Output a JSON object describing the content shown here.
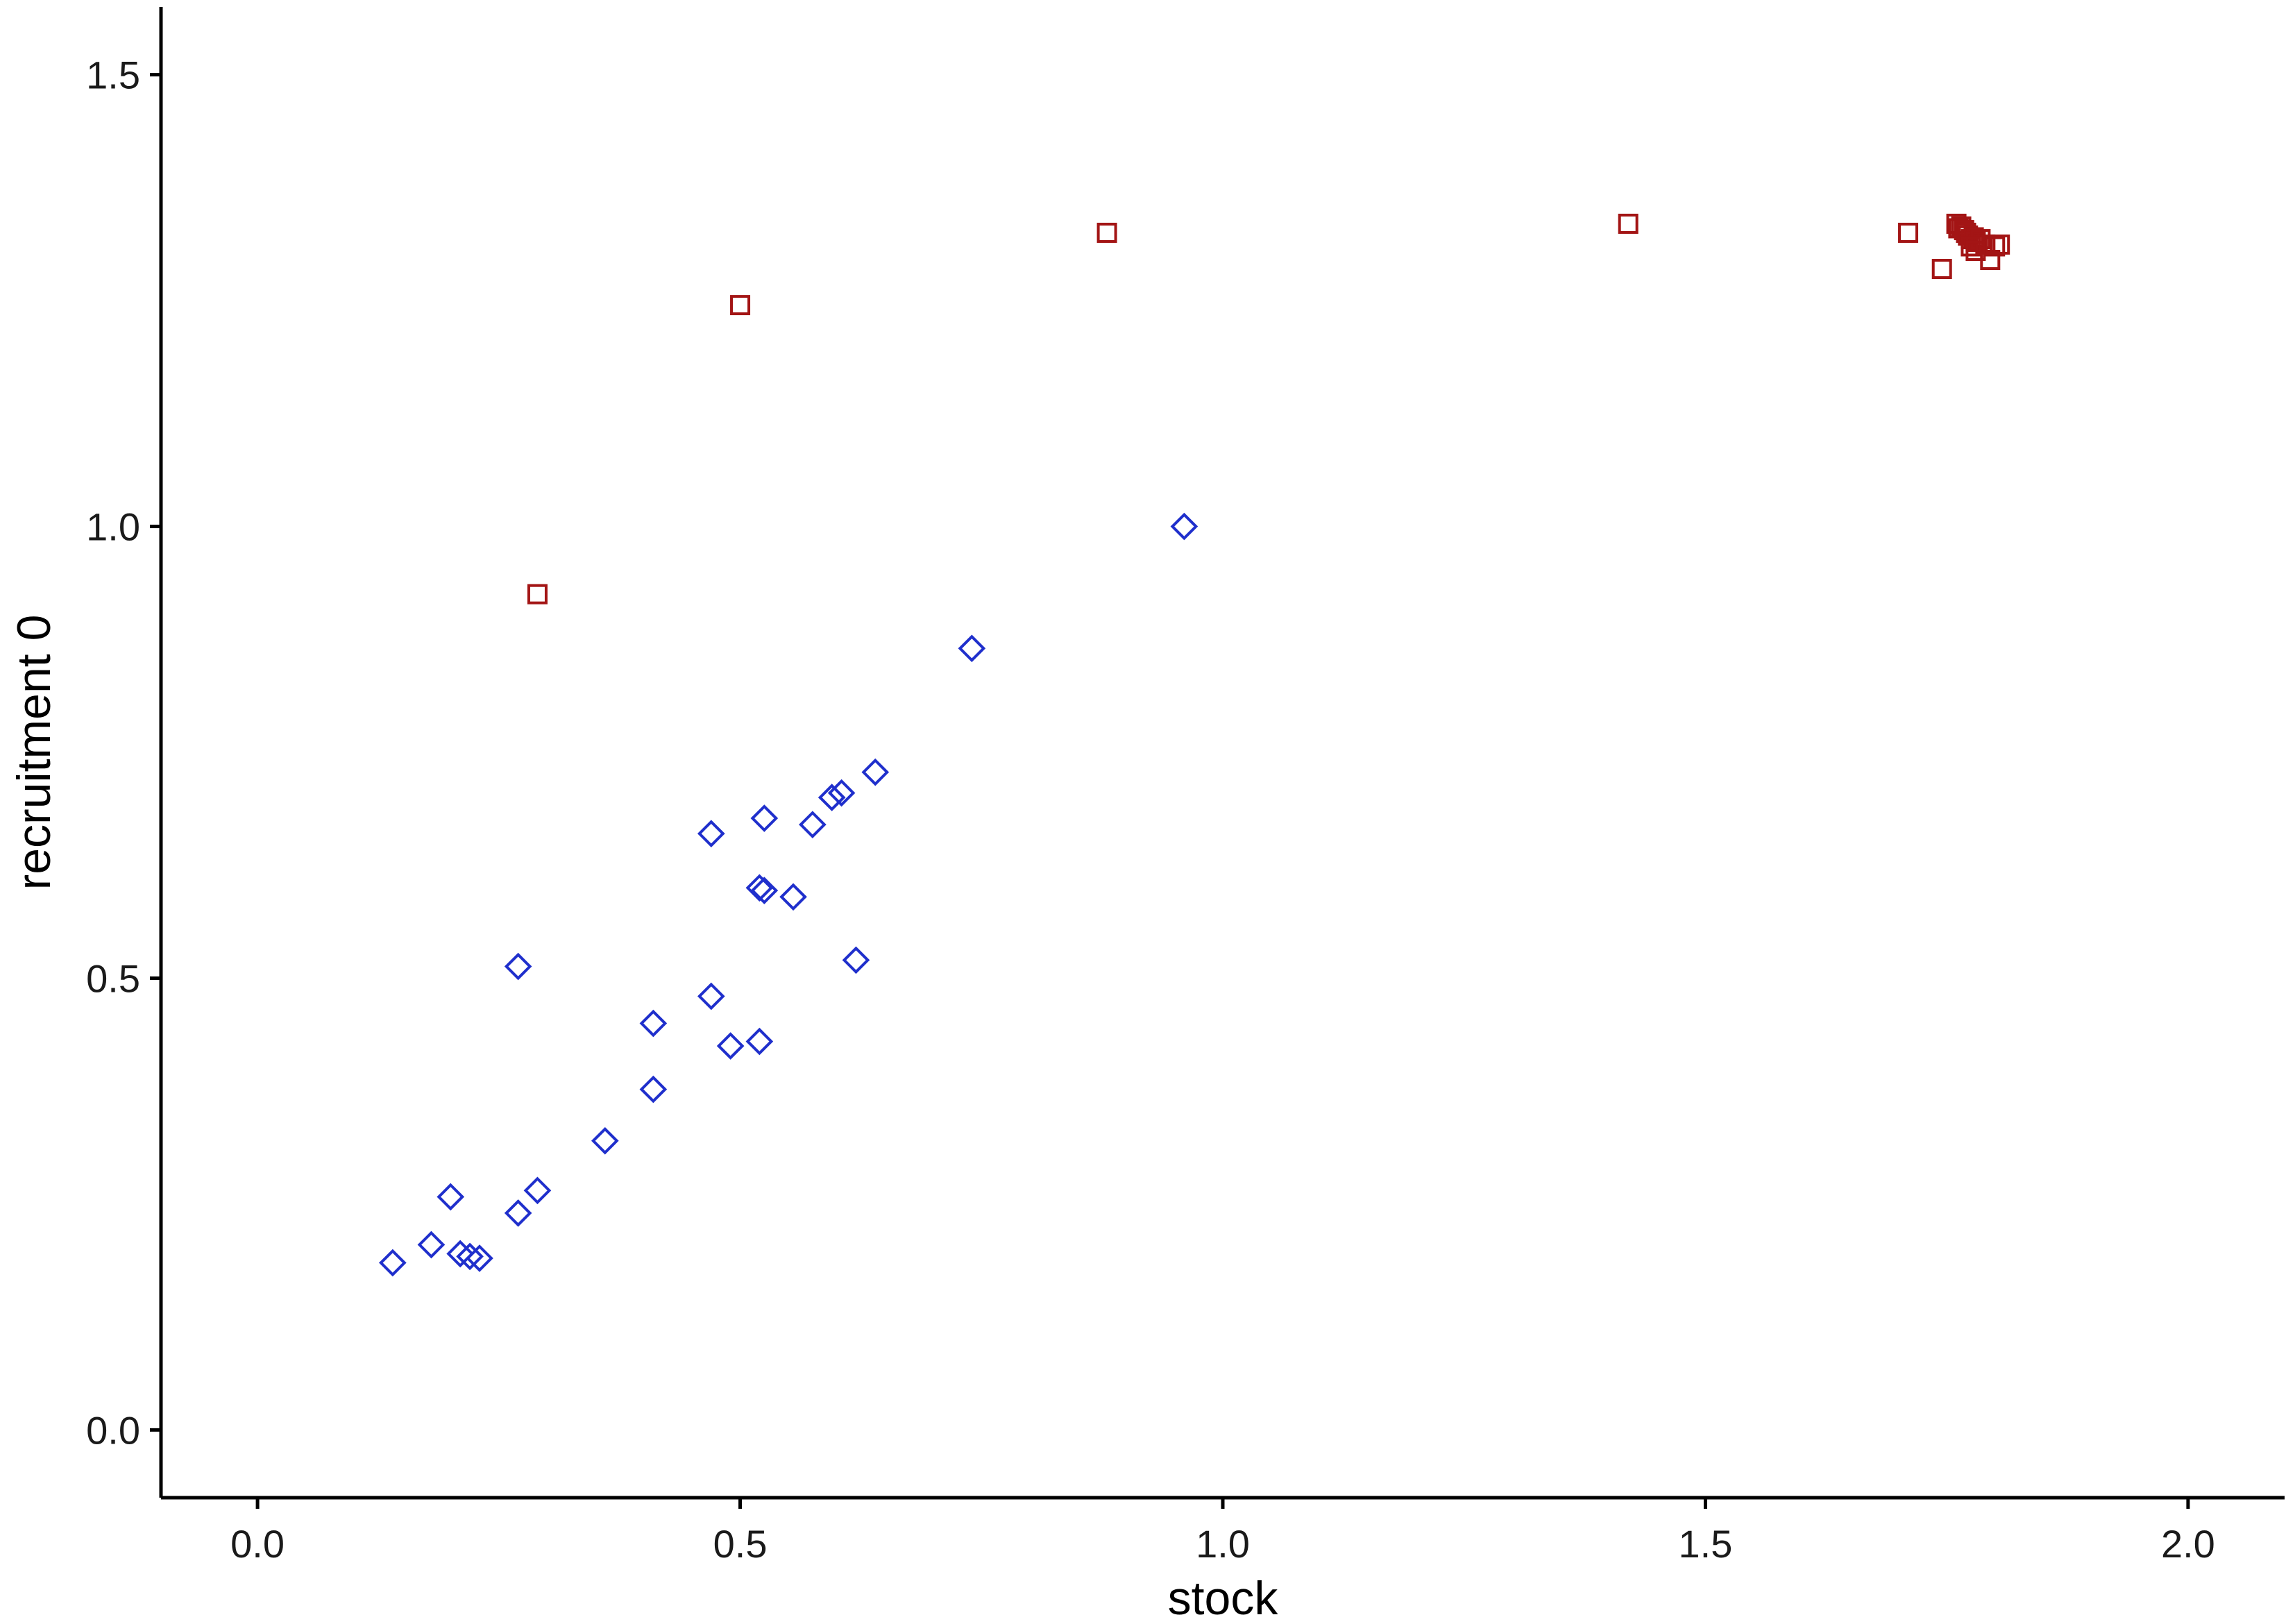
{
  "chart_data": {
    "type": "scatter",
    "xlabel": "stock",
    "ylabel": "recruitment 0",
    "xlim": [
      -0.1,
      2.1
    ],
    "ylim": [
      -0.075,
      1.575
    ],
    "x_ticks": [
      0.0,
      0.5,
      1.0,
      1.5,
      2.0
    ],
    "x_tick_labels": [
      "0.0",
      "0.5",
      "1.0",
      "1.5",
      "2.0"
    ],
    "y_ticks": [
      0.0,
      0.5,
      1.0,
      1.5
    ],
    "y_tick_labels": [
      "0.0",
      "0.5",
      "1.0",
      "1.5"
    ],
    "grid": false,
    "legend": "none",
    "series": [
      {
        "marker": "diamond",
        "color": "#1f2fcc",
        "x": [
          0.14,
          0.18,
          0.21,
          0.22,
          0.23,
          0.2,
          0.27,
          0.29,
          0.27,
          0.36,
          0.41,
          0.41,
          0.47,
          0.49,
          0.52,
          0.47,
          0.52,
          0.525,
          0.555,
          0.525,
          0.575,
          0.595,
          0.605,
          0.64,
          0.62,
          0.74,
          0.96
        ],
        "y": [
          0.185,
          0.205,
          0.195,
          0.192,
          0.19,
          0.258,
          0.24,
          0.265,
          0.513,
          0.32,
          0.377,
          0.45,
          0.48,
          0.425,
          0.43,
          0.66,
          0.6,
          0.597,
          0.59,
          0.677,
          0.67,
          0.7,
          0.705,
          0.728,
          0.52,
          0.865,
          1.0
        ]
      },
      {
        "marker": "square",
        "color": "#a31515",
        "x": [
          0.29,
          0.5,
          0.88,
          1.42,
          1.71,
          1.745,
          1.76,
          1.762,
          1.765,
          1.768,
          1.77,
          1.772,
          1.775,
          1.778,
          1.78,
          1.785,
          1.79,
          1.795,
          1.8,
          1.805,
          1.775,
          1.78
        ],
        "y": [
          0.925,
          1.245,
          1.325,
          1.335,
          1.325,
          1.285,
          1.335,
          1.33,
          1.332,
          1.328,
          1.325,
          1.322,
          1.318,
          1.32,
          1.315,
          1.318,
          1.312,
          1.295,
          1.31,
          1.312,
          1.31,
          1.305
        ]
      }
    ]
  }
}
